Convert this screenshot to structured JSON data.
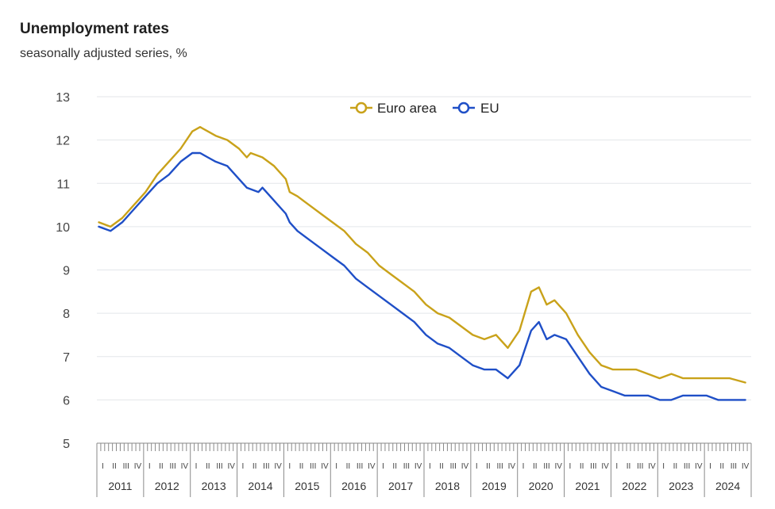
{
  "header": {
    "title": "Unemployment rates",
    "subtitle": "seasonally adjusted series, %"
  },
  "colors": {
    "euro_area": "#c9a21a",
    "eu": "#1f4fc7",
    "grid": "#e3e6ea",
    "axis": "#8a8a8a"
  },
  "chart_data": {
    "type": "line",
    "title": "Unemployment rates",
    "subtitle": "seasonally adjusted series, %",
    "ylim": [
      5,
      13
    ],
    "yticks": [
      5,
      6,
      7,
      8,
      9,
      10,
      11,
      12,
      13
    ],
    "grid": true,
    "legend_position": "top-center",
    "x_start": "2011-01",
    "x_end": "2024-12",
    "years": [
      "2011",
      "2012",
      "2013",
      "2014",
      "2015",
      "2016",
      "2017",
      "2018",
      "2019",
      "2020",
      "2021",
      "2022",
      "2023",
      "2024"
    ],
    "quarter_labels": [
      "I",
      "II",
      "III",
      "IV"
    ],
    "series": [
      {
        "name": "Euro area",
        "color": "#c9a21a",
        "points": [
          [
            "2011-01",
            10.1
          ],
          [
            "2011-04",
            10.0
          ],
          [
            "2011-07",
            10.2
          ],
          [
            "2011-10",
            10.5
          ],
          [
            "2012-01",
            10.8
          ],
          [
            "2012-04",
            11.2
          ],
          [
            "2012-07",
            11.5
          ],
          [
            "2012-10",
            11.8
          ],
          [
            "2013-01",
            12.2
          ],
          [
            "2013-03",
            12.3
          ],
          [
            "2013-05",
            12.2
          ],
          [
            "2013-07",
            12.1
          ],
          [
            "2013-10",
            12.0
          ],
          [
            "2014-01",
            11.8
          ],
          [
            "2014-03",
            11.6
          ],
          [
            "2014-04",
            11.7
          ],
          [
            "2014-07",
            11.6
          ],
          [
            "2014-10",
            11.4
          ],
          [
            "2015-01",
            11.1
          ],
          [
            "2015-02",
            10.8
          ],
          [
            "2015-04",
            10.7
          ],
          [
            "2015-07",
            10.5
          ],
          [
            "2015-10",
            10.3
          ],
          [
            "2016-01",
            10.1
          ],
          [
            "2016-04",
            9.9
          ],
          [
            "2016-07",
            9.6
          ],
          [
            "2016-10",
            9.4
          ],
          [
            "2017-01",
            9.1
          ],
          [
            "2017-04",
            8.9
          ],
          [
            "2017-07",
            8.7
          ],
          [
            "2017-10",
            8.5
          ],
          [
            "2018-01",
            8.2
          ],
          [
            "2018-04",
            8.0
          ],
          [
            "2018-07",
            7.9
          ],
          [
            "2018-10",
            7.7
          ],
          [
            "2019-01",
            7.5
          ],
          [
            "2019-04",
            7.4
          ],
          [
            "2019-07",
            7.5
          ],
          [
            "2019-10",
            7.2
          ],
          [
            "2020-01",
            7.6
          ],
          [
            "2020-04",
            8.5
          ],
          [
            "2020-06",
            8.6
          ],
          [
            "2020-08",
            8.2
          ],
          [
            "2020-10",
            8.3
          ],
          [
            "2021-01",
            8.0
          ],
          [
            "2021-04",
            7.5
          ],
          [
            "2021-07",
            7.1
          ],
          [
            "2021-10",
            6.8
          ],
          [
            "2022-01",
            6.7
          ],
          [
            "2022-04",
            6.7
          ],
          [
            "2022-07",
            6.7
          ],
          [
            "2022-10",
            6.6
          ],
          [
            "2023-01",
            6.5
          ],
          [
            "2023-04",
            6.6
          ],
          [
            "2023-07",
            6.5
          ],
          [
            "2023-10",
            6.5
          ],
          [
            "2024-01",
            6.5
          ],
          [
            "2024-04",
            6.5
          ],
          [
            "2024-07",
            6.5
          ],
          [
            "2024-11",
            6.4
          ]
        ]
      },
      {
        "name": "EU",
        "color": "#1f4fc7",
        "points": [
          [
            "2011-01",
            10.0
          ],
          [
            "2011-04",
            9.9
          ],
          [
            "2011-07",
            10.1
          ],
          [
            "2011-10",
            10.4
          ],
          [
            "2012-01",
            10.7
          ],
          [
            "2012-04",
            11.0
          ],
          [
            "2012-07",
            11.2
          ],
          [
            "2012-10",
            11.5
          ],
          [
            "2013-01",
            11.7
          ],
          [
            "2013-03",
            11.7
          ],
          [
            "2013-05",
            11.6
          ],
          [
            "2013-07",
            11.5
          ],
          [
            "2013-10",
            11.4
          ],
          [
            "2014-01",
            11.1
          ],
          [
            "2014-03",
            10.9
          ],
          [
            "2014-06",
            10.8
          ],
          [
            "2014-07",
            10.9
          ],
          [
            "2014-10",
            10.6
          ],
          [
            "2015-01",
            10.3
          ],
          [
            "2015-02",
            10.1
          ],
          [
            "2015-04",
            9.9
          ],
          [
            "2015-07",
            9.7
          ],
          [
            "2015-10",
            9.5
          ],
          [
            "2016-01",
            9.3
          ],
          [
            "2016-04",
            9.1
          ],
          [
            "2016-07",
            8.8
          ],
          [
            "2016-10",
            8.6
          ],
          [
            "2017-01",
            8.4
          ],
          [
            "2017-04",
            8.2
          ],
          [
            "2017-07",
            8.0
          ],
          [
            "2017-10",
            7.8
          ],
          [
            "2018-01",
            7.5
          ],
          [
            "2018-04",
            7.3
          ],
          [
            "2018-07",
            7.2
          ],
          [
            "2018-10",
            7.0
          ],
          [
            "2019-01",
            6.8
          ],
          [
            "2019-04",
            6.7
          ],
          [
            "2019-07",
            6.7
          ],
          [
            "2019-10",
            6.5
          ],
          [
            "2020-01",
            6.8
          ],
          [
            "2020-04",
            7.6
          ],
          [
            "2020-06",
            7.8
          ],
          [
            "2020-08",
            7.4
          ],
          [
            "2020-10",
            7.5
          ],
          [
            "2021-01",
            7.4
          ],
          [
            "2021-04",
            7.0
          ],
          [
            "2021-07",
            6.6
          ],
          [
            "2021-10",
            6.3
          ],
          [
            "2022-01",
            6.2
          ],
          [
            "2022-04",
            6.1
          ],
          [
            "2022-07",
            6.1
          ],
          [
            "2022-10",
            6.1
          ],
          [
            "2023-01",
            6.0
          ],
          [
            "2023-04",
            6.0
          ],
          [
            "2023-07",
            6.1
          ],
          [
            "2023-10",
            6.1
          ],
          [
            "2024-01",
            6.1
          ],
          [
            "2024-04",
            6.0
          ],
          [
            "2024-07",
            6.0
          ],
          [
            "2024-11",
            6.0
          ]
        ]
      }
    ]
  }
}
